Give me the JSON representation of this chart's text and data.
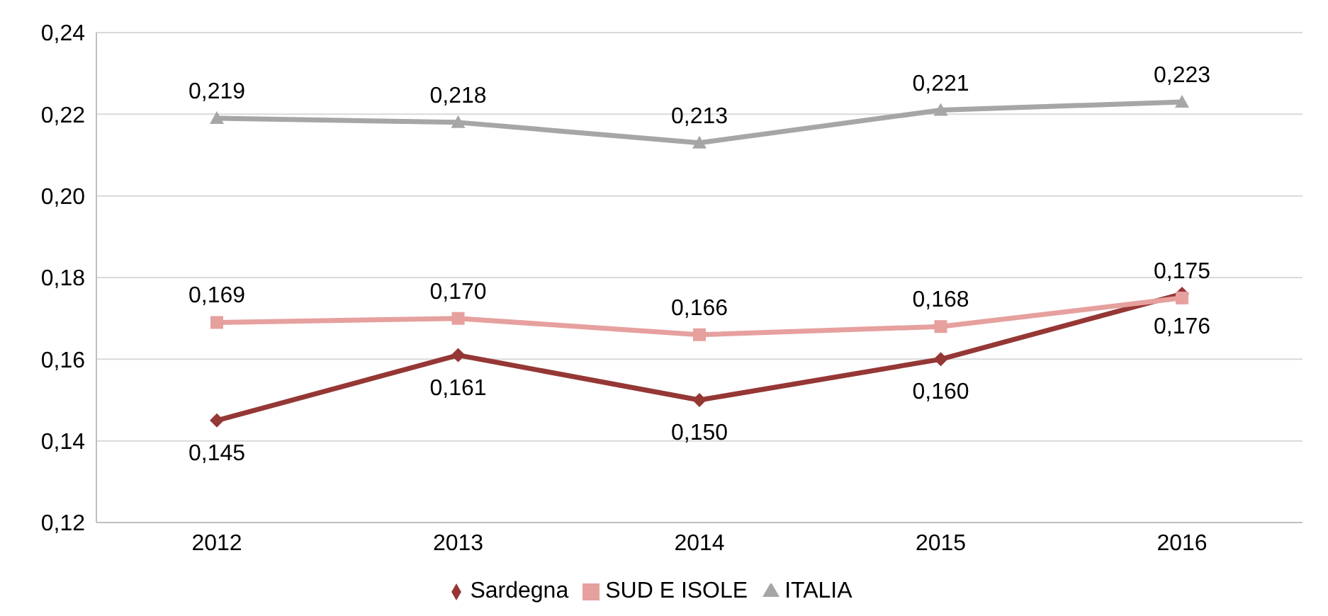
{
  "chart_data": {
    "type": "line",
    "categories": [
      "2012",
      "2013",
      "2014",
      "2015",
      "2016"
    ],
    "series": [
      {
        "name": "Sardegna",
        "color": "#953735",
        "marker": "diamond",
        "values": [
          0.145,
          0.161,
          0.15,
          0.16,
          0.176
        ],
        "value_labels": [
          "0,145",
          "0,161",
          "0,150",
          "0,160",
          "0,176"
        ]
      },
      {
        "name": "SUD E ISOLE",
        "color": "#e6a09e",
        "marker": "square",
        "values": [
          0.169,
          0.17,
          0.166,
          0.168,
          0.175
        ],
        "value_labels": [
          "0,169",
          "0,170",
          "0,166",
          "0,168",
          "0,175"
        ]
      },
      {
        "name": "ITALIA",
        "color": "#a6a6a6",
        "marker": "triangle",
        "values": [
          0.219,
          0.218,
          0.213,
          0.221,
          0.223
        ],
        "value_labels": [
          "0,219",
          "0,218",
          "0,213",
          "0,221",
          "0,223"
        ]
      }
    ],
    "ylim": [
      0.12,
      0.24
    ],
    "yticks": [
      {
        "value": 0.12,
        "label": "0,12"
      },
      {
        "value": 0.14,
        "label": "0,14"
      },
      {
        "value": 0.16,
        "label": "0,16"
      },
      {
        "value": 0.18,
        "label": "0,18"
      },
      {
        "value": 0.2,
        "label": "0,20"
      },
      {
        "value": 0.22,
        "label": "0,22"
      },
      {
        "value": 0.24,
        "label": "0,24"
      }
    ],
    "grid": "y",
    "legend": "bottom",
    "line_style": "solid"
  }
}
